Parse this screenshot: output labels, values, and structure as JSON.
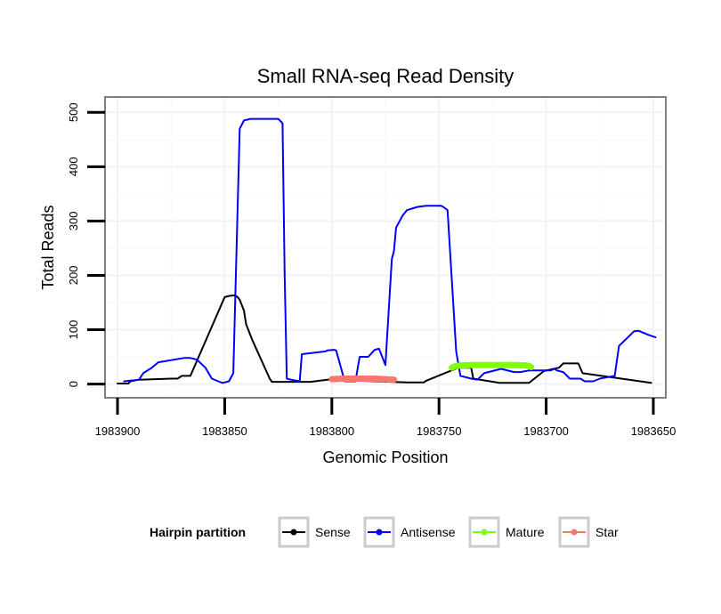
{
  "chart_data": {
    "type": "line",
    "title": "Small RNA-seq Read Density",
    "xlabel": "Genomic Position",
    "ylabel": "Total Reads",
    "xlim": [
      1983905,
      1983645
    ],
    "ylim": [
      -22,
      525
    ],
    "x_ticks": [
      1983900,
      1983850,
      1983800,
      1983750,
      1983700,
      1983650
    ],
    "x_tick_labels": [
      "1983900",
      "1983850",
      "1983800",
      "1983750",
      "1983700",
      "1983650"
    ],
    "y_ticks": [
      0,
      100,
      200,
      300,
      400,
      500
    ],
    "y_tick_labels": [
      "0",
      "100",
      "200",
      "300",
      "400",
      "500"
    ],
    "grid": true,
    "legend": {
      "title": "Hairpin partition",
      "position": "bottom",
      "entries": [
        "Sense",
        "Antisense",
        "Mature",
        "Star"
      ]
    },
    "series": [
      {
        "name": "Sense",
        "color": "#000000",
        "style": "line",
        "x": [
          1983900,
          1983895,
          1983894,
          1983890,
          1983875,
          1983872,
          1983870,
          1983869,
          1983868,
          1983866,
          1983850,
          1983848,
          1983846,
          1983845,
          1983844,
          1983843,
          1983841,
          1983840,
          1983837,
          1983829,
          1983828,
          1983810,
          1983800,
          1983799,
          1983794,
          1983765,
          1983763,
          1983757,
          1983756,
          1983741,
          1983736,
          1983735,
          1983734,
          1983723,
          1983722,
          1983719,
          1983708,
          1983701,
          1983694,
          1983693,
          1983692,
          1983690,
          1983688,
          1983685,
          1983683,
          1983651
        ],
        "y": [
          1,
          1,
          5,
          8,
          10,
          10,
          15,
          15,
          15,
          15,
          160,
          162,
          163,
          163,
          160,
          155,
          135,
          110,
          80,
          10,
          4,
          4,
          9,
          9,
          7,
          3,
          3,
          3,
          6,
          30,
          30,
          30,
          10,
          3,
          2,
          2,
          2,
          24,
          30,
          34,
          38,
          38,
          38,
          38,
          20,
          2
        ]
      },
      {
        "name": "Antisense",
        "color": "#0000ff",
        "style": "line",
        "x": [
          1983897,
          1983890,
          1983888,
          1983884,
          1983881,
          1983869,
          1983866,
          1983863,
          1983859,
          1983856,
          1983853,
          1983851,
          1983848,
          1983846,
          1983843,
          1983841,
          1983838,
          1983825,
          1983823,
          1983822,
          1983821,
          1983819,
          1983815,
          1983814,
          1983803,
          1983802,
          1983799,
          1983798,
          1983794,
          1983789,
          1983787,
          1983783,
          1983780,
          1983778,
          1983777,
          1983775,
          1983772,
          1983771,
          1983770,
          1983767,
          1983765,
          1983760,
          1983756,
          1983749,
          1983748,
          1983746,
          1983742,
          1983740,
          1983735,
          1983732,
          1983729,
          1983721,
          1983715,
          1983712,
          1983708,
          1983698,
          1983696,
          1983695,
          1983692,
          1983689,
          1983684,
          1983682,
          1983678,
          1983675,
          1983672,
          1983668,
          1983666,
          1983659,
          1983657,
          1983652,
          1983649
        ],
        "y": [
          5,
          8,
          20,
          30,
          40,
          48,
          48,
          45,
          30,
          10,
          5,
          2,
          5,
          20,
          470,
          485,
          488,
          488,
          480,
          200,
          10,
          8,
          5,
          55,
          60,
          62,
          63,
          62,
          5,
          5,
          50,
          50,
          63,
          65,
          55,
          35,
          230,
          245,
          288,
          310,
          320,
          326,
          328,
          328,
          326,
          320,
          60,
          15,
          10,
          8,
          20,
          28,
          22,
          22,
          25,
          25,
          28,
          25,
          22,
          10,
          10,
          5,
          5,
          10,
          12,
          15,
          70,
          97,
          98,
          90,
          86
        ]
      },
      {
        "name": "Mature",
        "color": "#80ff00",
        "style": "thick",
        "x": [
          1983744,
          1983743,
          1983742,
          1983740,
          1983735,
          1983725,
          1983715,
          1983709,
          1983708,
          1983707
        ],
        "y": [
          30,
          32,
          33,
          34,
          35,
          35,
          35,
          34,
          33,
          31
        ]
      },
      {
        "name": "Star",
        "color": "#f8766d",
        "style": "thick",
        "x": [
          1983800,
          1983795,
          1983790,
          1983785,
          1983780,
          1983775,
          1983771
        ],
        "y": [
          9,
          10,
          10,
          10,
          10,
          9,
          8
        ]
      }
    ]
  }
}
